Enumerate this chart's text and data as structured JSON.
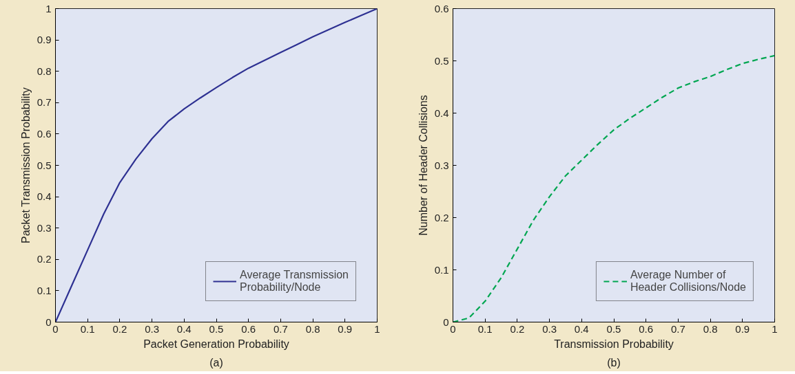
{
  "chart_data": [
    {
      "type": "line",
      "xlabel": "Packet Generation Probability",
      "ylabel": "Packet Transmission Probability",
      "annotations": [
        "(a)"
      ],
      "x": [
        0,
        0.05,
        0.1,
        0.15,
        0.2,
        0.25,
        0.3,
        0.35,
        0.4,
        0.45,
        0.5,
        0.55,
        0.6,
        0.65,
        0.7,
        0.75,
        0.8,
        0.85,
        0.9,
        0.95,
        1
      ],
      "series": [
        {
          "name": "Average Transmission Probability/Node",
          "color": "#2e3192",
          "line_style": "solid",
          "values": [
            0,
            0.115,
            0.23,
            0.345,
            0.445,
            0.52,
            0.585,
            0.64,
            0.68,
            0.715,
            0.748,
            0.78,
            0.81,
            0.835,
            0.86,
            0.885,
            0.91,
            0.933,
            0.956,
            0.978,
            1.0
          ]
        }
      ],
      "xlim": [
        0,
        1
      ],
      "ylim": [
        0,
        1
      ],
      "xticks": [
        0,
        0.1,
        0.2,
        0.3,
        0.4,
        0.5,
        0.6,
        0.7,
        0.8,
        0.9,
        1
      ],
      "yticks": [
        0,
        0.1,
        0.2,
        0.3,
        0.4,
        0.5,
        0.6,
        0.7,
        0.8,
        0.9,
        1
      ],
      "legend": "bottom right",
      "grid": false
    },
    {
      "type": "line",
      "xlabel": "Transmission Probability",
      "ylabel": "Number of Header Collisions",
      "annotations": [
        "(b)"
      ],
      "x": [
        0,
        0.05,
        0.1,
        0.15,
        0.2,
        0.25,
        0.3,
        0.35,
        0.4,
        0.45,
        0.5,
        0.55,
        0.6,
        0.65,
        0.7,
        0.75,
        0.8,
        0.85,
        0.9,
        0.95,
        1
      ],
      "series": [
        {
          "name": "Average Number of Header Collisions/Node",
          "color": "#00a651",
          "line_style": "dashed",
          "values": [
            0,
            0.008,
            0.04,
            0.085,
            0.14,
            0.195,
            0.24,
            0.28,
            0.31,
            0.34,
            0.368,
            0.39,
            0.41,
            0.43,
            0.448,
            0.46,
            0.47,
            0.483,
            0.495,
            0.503,
            0.51
          ]
        }
      ],
      "xlim": [
        0,
        1
      ],
      "ylim": [
        0,
        0.6
      ],
      "xticks": [
        0,
        0.1,
        0.2,
        0.3,
        0.4,
        0.5,
        0.6,
        0.7,
        0.8,
        0.9,
        1
      ],
      "yticks": [
        0,
        0.1,
        0.2,
        0.3,
        0.4,
        0.5,
        0.6
      ],
      "legend": "bottom right",
      "grid": false
    }
  ]
}
